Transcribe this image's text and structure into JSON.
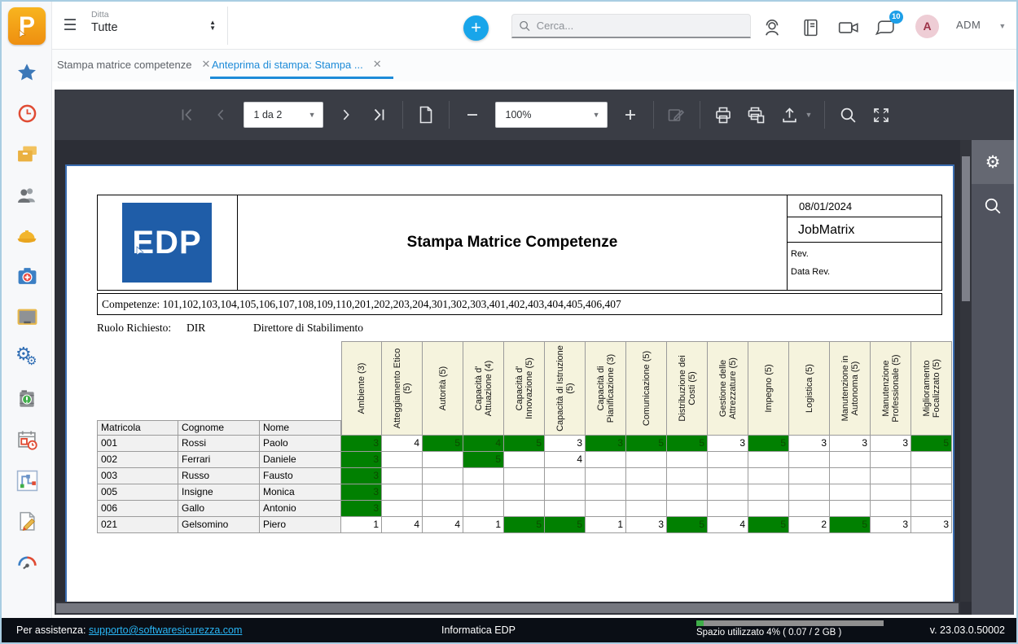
{
  "topbar": {
    "company_label": "Ditta",
    "company_value": "Tutte",
    "search_placeholder": "Cerca...",
    "chat_badge": "10",
    "avatar_initial": "A",
    "user_code": "ADM",
    "icons": [
      "menu-icon",
      "add-icon",
      "search-icon",
      "support-agent-icon",
      "manual-book-icon",
      "video-call-icon",
      "chat-icon",
      "user-caret-icon"
    ]
  },
  "tabs": [
    {
      "label": "Stampa matrice competenze"
    },
    {
      "label": "Anteprima di stampa: Stampa ..."
    }
  ],
  "toolbar": {
    "page_value": "1 da 2",
    "zoom_value": "100%",
    "icons": [
      "first-page-icon",
      "prev-page-icon",
      "next-page-icon",
      "last-page-icon",
      "single-page-icon",
      "zoom-out-icon",
      "zoom-in-icon",
      "edit-icon",
      "print-icon",
      "print-pages-icon",
      "export-icon",
      "search-icon",
      "fullscreen-icon"
    ]
  },
  "sidebar_icons": [
    "favorites-star",
    "time-clock",
    "archive-boxes",
    "employees",
    "safety-helmet",
    "first-aid-kit",
    "board-monitor",
    "settings-gears",
    "materials-drum",
    "schedule-calendar",
    "workflow-path",
    "edit-document",
    "dashboard-gauge"
  ],
  "right_panel_icons": [
    "settings-gear",
    "search"
  ],
  "report": {
    "logo_text": "EDP",
    "title": "Stampa Matrice Competenze",
    "date": "08/01/2024",
    "doc_name": "JobMatrix",
    "rev_label": "Rev.",
    "data_rev_label": "Data Rev.",
    "competenze": "Competenze: 101,102,103,104,105,106,107,108,109,110,201,202,203,204,301,302,303,401,402,403,404,405,406,407",
    "ruolo_label": "Ruolo Richiesto:",
    "ruolo_code": "DIR",
    "ruolo_desc": "Direttore di Stabilimento"
  },
  "matrix": {
    "highlight_color": "#018001",
    "left_headers": [
      "Matricola",
      "Cognome",
      "Nome"
    ],
    "columns": [
      "Ambiente (3)",
      "Atteggiamento Etico (5)",
      "Autorità (5)",
      "Capacità d' Attuazione (4)",
      "Capacità d' Innovazione (5)",
      "Capacità di Istruzione (5)",
      "Capacità di Pianificazione (3)",
      "Comunicazione (5)",
      "Distribuzione dei Costi (5)",
      "Gestione delle Attrezzature (5)",
      "Impegno (5)",
      "Logistica (5)",
      "Manutenzione in Autonoma (5)",
      "Manutenzione Professionale (5)",
      "Miglioramento Focalizzato (5)"
    ],
    "rows": [
      {
        "matricola": "001",
        "cognome": "Rossi",
        "nome": "Paolo",
        "values": [
          "3g",
          "4",
          "5g",
          "4g",
          "5g",
          "3",
          "3g",
          "5g",
          "5g",
          "3",
          "5g",
          "3",
          "3",
          "3",
          "5g"
        ]
      },
      {
        "matricola": "002",
        "cognome": "Ferrari",
        "nome": "Daniele",
        "values": [
          "3g",
          "",
          "",
          "5g",
          "",
          "4",
          "",
          "",
          "",
          "",
          "",
          "",
          "",
          "",
          ""
        ]
      },
      {
        "matricola": "003",
        "cognome": "Russo",
        "nome": "Fausto",
        "values": [
          "3g",
          "",
          "",
          "",
          "",
          "",
          "",
          "",
          "",
          "",
          "",
          "",
          "",
          "",
          ""
        ]
      },
      {
        "matricola": "005",
        "cognome": "Insigne",
        "nome": "Monica",
        "values": [
          "3g",
          "",
          "",
          "",
          "",
          "",
          "",
          "",
          "",
          "",
          "",
          "",
          "",
          "",
          ""
        ]
      },
      {
        "matricola": "006",
        "cognome": "Gallo",
        "nome": "Antonio",
        "values": [
          "3g",
          "",
          "",
          "",
          "",
          "",
          "",
          "",
          "",
          "",
          "",
          "",
          "",
          "",
          ""
        ]
      },
      {
        "matricola": "021",
        "cognome": "Gelsomino",
        "nome": "Piero",
        "values": [
          "1",
          "4",
          "4",
          "1",
          "5g",
          "5g",
          "1",
          "3",
          "5g",
          "4",
          "5g",
          "2",
          "5g",
          "3",
          "3"
        ]
      }
    ]
  },
  "statusbar": {
    "assist_label": "Per assistenza: ",
    "assist_link": "supporto@softwaresicurezza.com",
    "center_text": "Informatica EDP",
    "storage_text": "Spazio utilizzato 4% ( 0.07 / 2 GB )",
    "storage_pct": 4,
    "version": "v. 23.03.0.50002"
  }
}
